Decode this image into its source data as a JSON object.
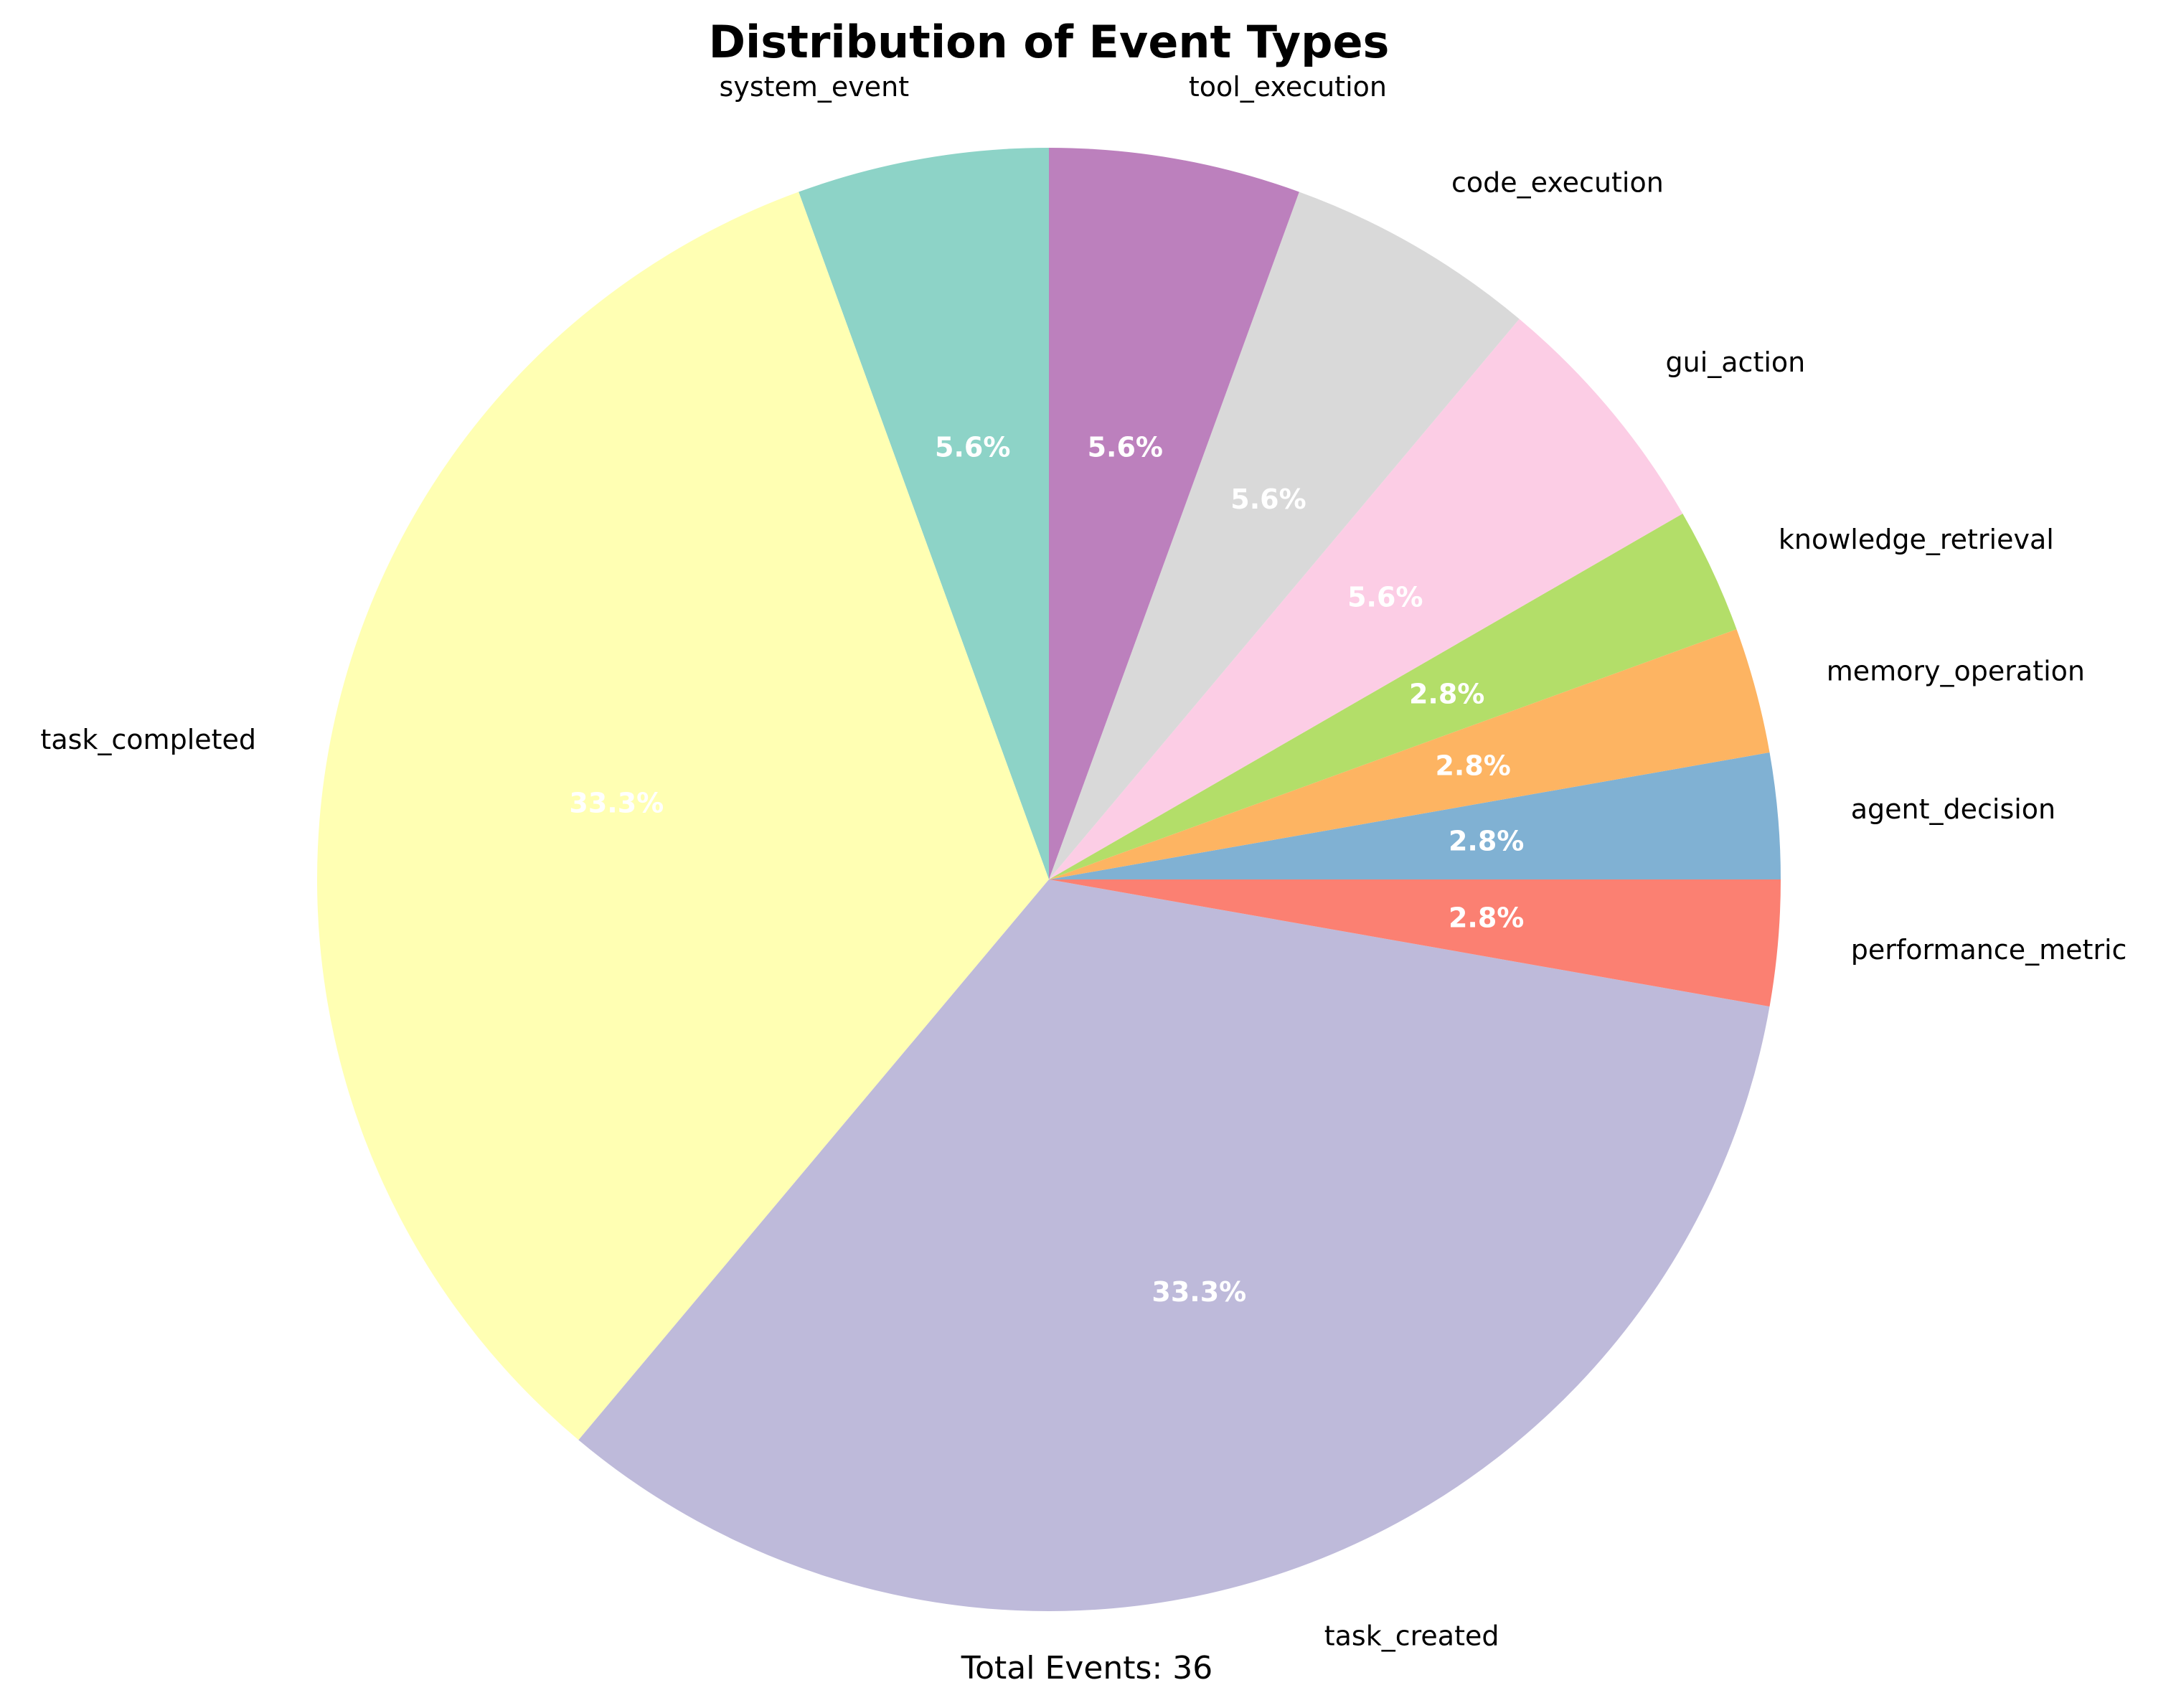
{
  "chart_data": {
    "type": "pie",
    "title": "Distribution of Event Types",
    "footer": "Total Events: 36",
    "start_angle_deg": 90,
    "direction": "counterclockwise",
    "slices": [
      {
        "label": "system_event",
        "value": 2,
        "pct_label": "5.6%",
        "color": "#8dd3c7"
      },
      {
        "label": "task_completed",
        "value": 12,
        "pct_label": "33.3%",
        "color": "#ffffb3"
      },
      {
        "label": "task_created",
        "value": 12,
        "pct_label": "33.3%",
        "color": "#bebada"
      },
      {
        "label": "performance_metric",
        "value": 1,
        "pct_label": "2.8%",
        "color": "#fb8072"
      },
      {
        "label": "agent_decision",
        "value": 1,
        "pct_label": "2.8%",
        "color": "#80b1d3"
      },
      {
        "label": "memory_operation",
        "value": 1,
        "pct_label": "2.8%",
        "color": "#fdb462"
      },
      {
        "label": "knowledge_retrieval",
        "value": 1,
        "pct_label": "2.8%",
        "color": "#b3de69"
      },
      {
        "label": "gui_action",
        "value": 2,
        "pct_label": "5.6%",
        "color": "#fccde5"
      },
      {
        "label": "code_execution",
        "value": 2,
        "pct_label": "5.6%",
        "color": "#d9d9d9"
      },
      {
        "label": "tool_execution",
        "value": 2,
        "pct_label": "5.6%",
        "color": "#bc80bd"
      }
    ]
  }
}
